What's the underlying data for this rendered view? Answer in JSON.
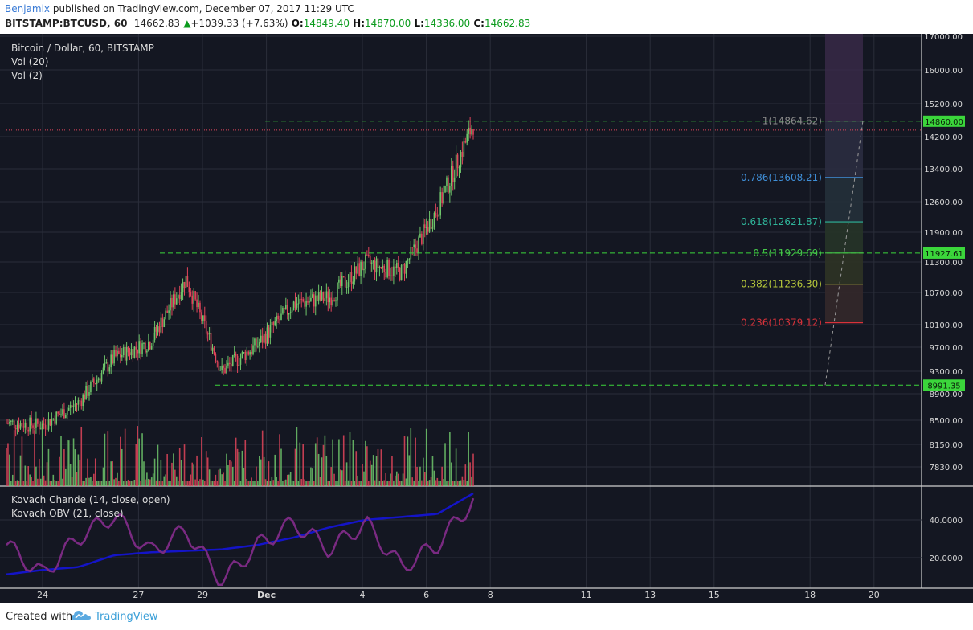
{
  "header": {
    "author": "Benjamix",
    "published_text": " published on TradingView.com, December 07, 2017 11:29 UTC",
    "symbol": "BITSTAMP:BTCUSD, 60",
    "last": "14662.83",
    "change": "+1039.33 (+7.63%)",
    "open_label": "O:",
    "open": "14849.40",
    "high_label": "H:",
    "high": "14870.00",
    "low_label": "L:",
    "low": "14336.00",
    "close_label": "C:",
    "close": "14662.83"
  },
  "main_pane": {
    "title": "Bitcoin / Dollar, 60, BITSTAMP",
    "study1": "Vol (20)",
    "study2": "Vol (2)"
  },
  "lower_pane": {
    "study1": "Kovach Chande (14, close, open)",
    "study2": "Kovach OBV (21, close)"
  },
  "footer": {
    "created": "Created with",
    "brand": "TradingView"
  },
  "colors": {
    "background": "#141722",
    "grid": "#2a2e3a",
    "up": "#6fc66b",
    "down": "#e2455b",
    "dash_green": "#3bd63b",
    "obv_line": "#1414c8",
    "chande_line": "#7a2a82"
  },
  "chart_data": [
    {
      "type": "line",
      "title": "Bitcoin / Dollar, 60, BITSTAMP",
      "y_axis_ticks": [
        "17000.00",
        "16000.00",
        "15200.00",
        "14200.00",
        "13400.00",
        "12600.00",
        "11900.00",
        "11300.00",
        "10700.00",
        "10100.00",
        "9700.00",
        "9300.00",
        "8900.00",
        "8500.00",
        "8150.00",
        "7830.00"
      ],
      "x_axis_ticks": [
        "24",
        "27",
        "29",
        "Dec",
        "4",
        "6",
        "8",
        "11",
        "13",
        "15",
        "18",
        "20"
      ],
      "price_path": {
        "x": [
          "Nov 24",
          "Nov 25",
          "Nov 26",
          "Nov 27",
          "Nov 28",
          "Nov 29",
          "Nov 30",
          "Dec 1",
          "Dec 2",
          "Dec 3",
          "Dec 4",
          "Dec 5",
          "Dec 6",
          "Dec 7"
        ],
        "y": [
          8150,
          8100,
          8600,
          9600,
          9950,
          11350,
          9300,
          9900,
          10800,
          10950,
          11700,
          11500,
          12900,
          14800
        ]
      },
      "horizontal_levels": [
        {
          "label": "14860.00",
          "value": 14860
        },
        {
          "label": "11927.61",
          "value": 11927.61
        },
        {
          "label": "8991.35",
          "value": 8991.35
        }
      ],
      "current_price": 14662.83,
      "fib_levels": [
        {
          "label": "1(14864.62)",
          "value": 14864.62,
          "color": "#8a8a8a"
        },
        {
          "label": "0.786(13608.21)",
          "value": 13608.21,
          "color": "#3f8fd8"
        },
        {
          "label": "0.618(12621.87)",
          "value": 12621.87,
          "color": "#2fb59a"
        },
        {
          "label": "0.5(11929.69)",
          "value": 11929.69,
          "color": "#45c64a"
        },
        {
          "label": "0.382(11236.30)",
          "value": 11236.3,
          "color": "#b6c83a"
        },
        {
          "label": "0.236(10379.12)",
          "value": 10379.12,
          "color": "#d8323a"
        }
      ]
    },
    {
      "type": "line",
      "title": "Kovach Chande / Kovach OBV",
      "y_axis_ticks": [
        "40.0000",
        "20.0000"
      ],
      "series": [
        {
          "name": "Kovach OBV (21, close)",
          "values": [
            5,
            8,
            10,
            18,
            20,
            21,
            22,
            25,
            30,
            37,
            42,
            44,
            46,
            60
          ]
        },
        {
          "name": "Kovach Chande (14, close, open)",
          "values": [
            25,
            5,
            30,
            45,
            20,
            35,
            0,
            25,
            40,
            22,
            40,
            10,
            25,
            55
          ]
        }
      ]
    }
  ]
}
